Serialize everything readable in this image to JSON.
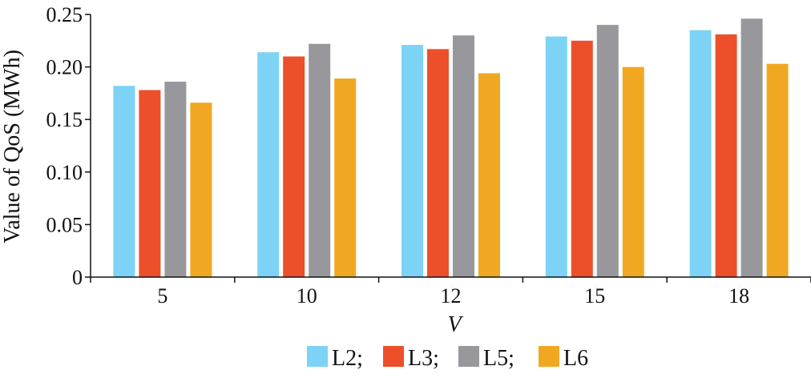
{
  "chart_data": {
    "type": "bar",
    "title": "",
    "xlabel": "V",
    "ylabel": "Value of QoS (MWh)",
    "categories": [
      "5",
      "10",
      "12",
      "15",
      "18"
    ],
    "series": [
      {
        "name": "L2;",
        "color": "#7dd3f5",
        "values": [
          0.182,
          0.214,
          0.221,
          0.229,
          0.235
        ]
      },
      {
        "name": "L3;",
        "color": "#ee4f2b",
        "values": [
          0.178,
          0.21,
          0.217,
          0.225,
          0.231
        ]
      },
      {
        "name": "L5;",
        "color": "#98989c",
        "values": [
          0.186,
          0.222,
          0.23,
          0.24,
          0.246
        ]
      },
      {
        "name": "L6",
        "color": "#f0a823",
        "values": [
          0.166,
          0.189,
          0.194,
          0.2,
          0.203
        ]
      }
    ],
    "ylim": [
      0,
      0.25
    ],
    "yticks": [
      "0",
      "0.05",
      "0.10",
      "0.15",
      "0.20",
      "0.25"
    ],
    "ytick_values": [
      0,
      0.05,
      0.1,
      0.15,
      0.2,
      0.25
    ],
    "grid": false,
    "legend_position": "bottom"
  }
}
